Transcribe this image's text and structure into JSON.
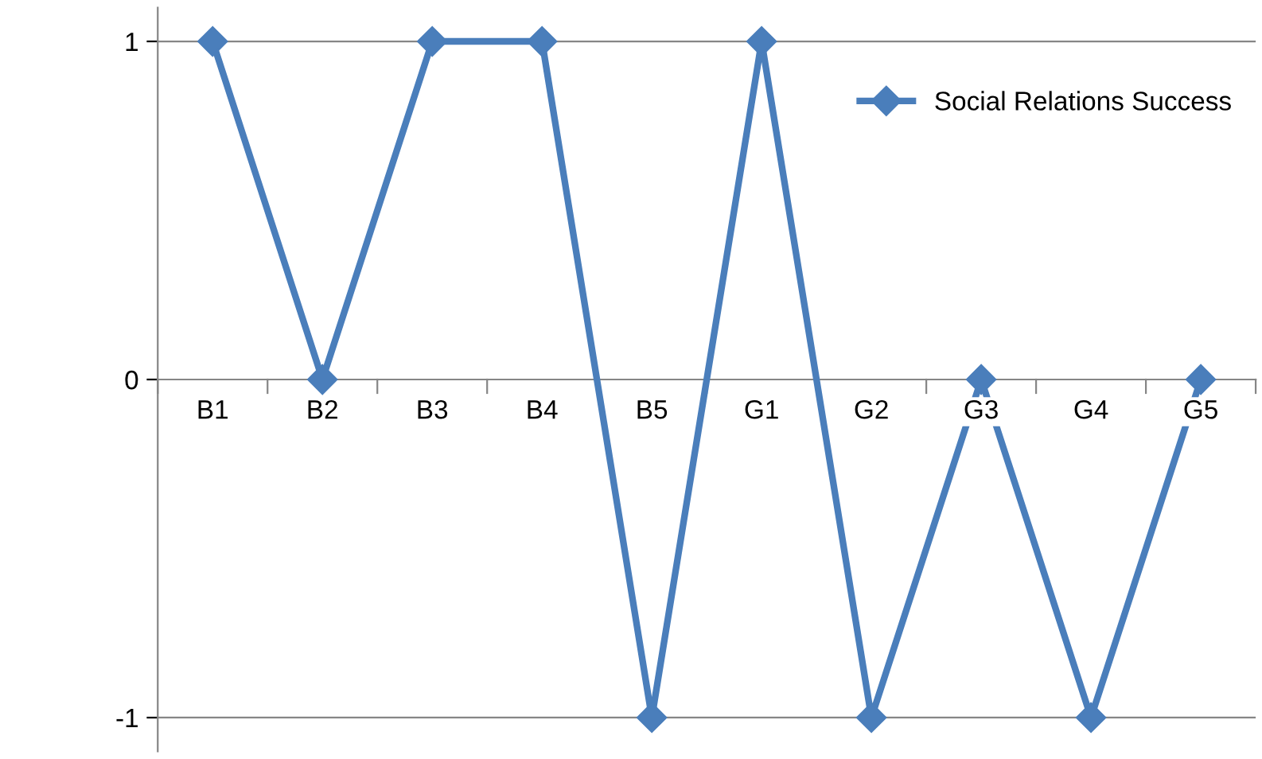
{
  "chart_data": {
    "type": "line",
    "categories": [
      "B1",
      "B2",
      "B3",
      "B4",
      "B5",
      "G1",
      "G2",
      "G3",
      "G4",
      "G5"
    ],
    "series": [
      {
        "name": "Social Relations Success",
        "color": "#4a7ebb",
        "values": [
          1,
          0,
          1,
          1,
          -1,
          1,
          -1,
          0,
          -1,
          0
        ]
      }
    ],
    "ylim": [
      -1.1,
      1.1
    ],
    "yticks": [
      -1,
      0,
      1
    ],
    "grid": "y",
    "legend": "top right",
    "marker": "diamond",
    "line_style": "solid"
  }
}
